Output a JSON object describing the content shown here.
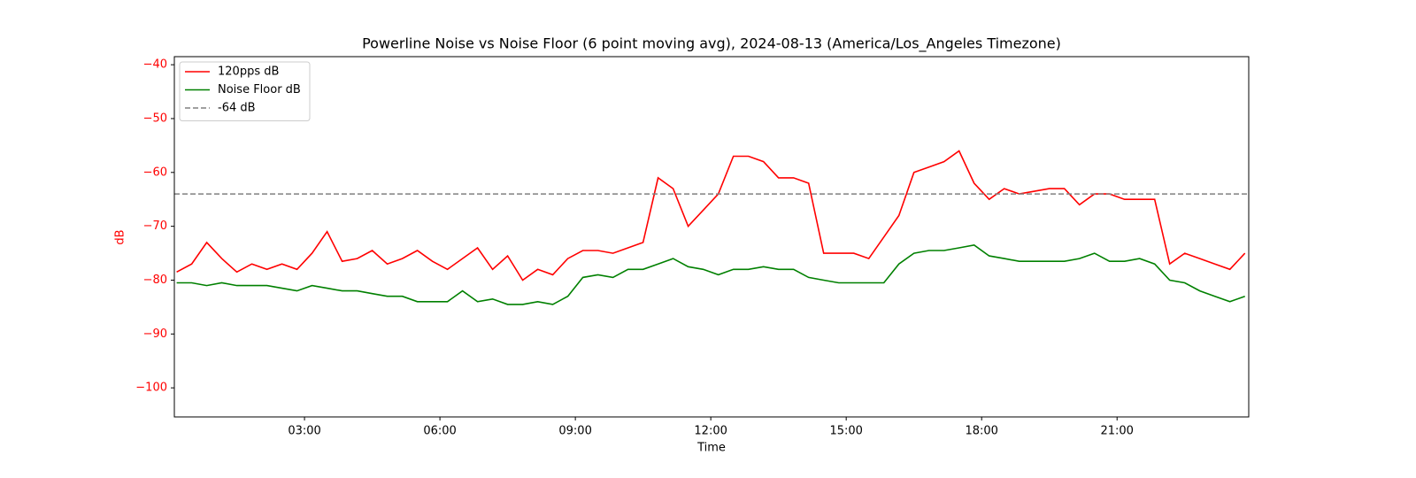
{
  "chart_data": {
    "type": "line",
    "title": "Powerline Noise vs Noise Floor (6 point moving avg), 2024-08-13 (America/Los_Angeles Timezone)",
    "xlabel": "Time",
    "ylabel": "dB",
    "ylabel_color": "#ff0000",
    "x": [
      "00:10",
      "00:30",
      "00:50",
      "01:10",
      "01:30",
      "01:50",
      "02:10",
      "02:30",
      "02:50",
      "03:10",
      "03:30",
      "03:50",
      "04:10",
      "04:30",
      "04:50",
      "05:10",
      "05:30",
      "05:50",
      "06:10",
      "06:30",
      "06:50",
      "07:10",
      "07:30",
      "07:50",
      "08:10",
      "08:30",
      "08:50",
      "09:10",
      "09:30",
      "09:50",
      "10:10",
      "10:30",
      "10:50",
      "11:10",
      "11:30",
      "11:50",
      "12:10",
      "12:30",
      "12:50",
      "13:10",
      "13:30",
      "13:50",
      "14:10",
      "14:30",
      "14:50",
      "15:10",
      "15:30",
      "15:50",
      "16:10",
      "16:30",
      "16:50",
      "17:10",
      "17:30",
      "17:50",
      "18:10",
      "18:30",
      "18:50",
      "19:10",
      "19:30",
      "19:50",
      "20:10",
      "20:30",
      "20:50",
      "21:10",
      "21:30",
      "21:50",
      "22:10",
      "22:30",
      "22:50",
      "23:10",
      "23:30",
      "23:50"
    ],
    "series": [
      {
        "name": "120pps dB",
        "color": "#ff0000",
        "values": [
          -78.5,
          -77,
          -73,
          -76,
          -78.5,
          -77,
          -78,
          -77,
          -78,
          -75,
          -71,
          -76.5,
          -76,
          -74.5,
          -77,
          -76,
          -74.5,
          -76.5,
          -78,
          -76,
          -74,
          -78,
          -75.5,
          -80,
          -78,
          -79,
          -76,
          -74.5,
          -74.5,
          -75,
          -74,
          -73,
          -61,
          -63,
          -70,
          -67,
          -64,
          -57,
          -57,
          -58,
          -61,
          -61,
          -62,
          -75,
          -75,
          -75,
          -76,
          -72,
          -68,
          -60,
          -59,
          -58,
          -56,
          -62,
          -65,
          -63,
          -64,
          -63.5,
          -63,
          -63,
          -66,
          -64,
          -64,
          -65,
          -65,
          -65,
          -77,
          -75,
          -76,
          -77,
          -78,
          -75
        ]
      },
      {
        "name": "Noise Floor dB",
        "color": "#008000",
        "values": [
          -80.5,
          -80.5,
          -81,
          -80.5,
          -81,
          -81,
          -81,
          -81.5,
          -82,
          -81,
          -81.5,
          -82,
          -82,
          -82.5,
          -83,
          -83,
          -84,
          -84,
          -84,
          -82,
          -84,
          -83.5,
          -84.5,
          -84.5,
          -84,
          -84.5,
          -83,
          -79.5,
          -79,
          -79.5,
          -78,
          -78,
          -77,
          -76,
          -77.5,
          -78,
          -79,
          -78,
          -78,
          -77.5,
          -78,
          -78,
          -79.5,
          -80,
          -80.5,
          -80.5,
          -80.5,
          -80.5,
          -77,
          -75,
          -74.5,
          -74.5,
          -74,
          -73.5,
          -75.5,
          -76,
          -76.5,
          -76.5,
          -76.5,
          -76.5,
          -76,
          -75,
          -76.5,
          -76.5,
          -76,
          -77,
          -80,
          -80.5,
          -82,
          -83,
          -84,
          -83
        ]
      }
    ],
    "hline": {
      "name": "-64 dB",
      "value": -64,
      "color": "#808080",
      "dashed": true
    },
    "xlim": [
      "00:07",
      "23:55"
    ],
    "xticks": [
      "03:00",
      "06:00",
      "09:00",
      "12:00",
      "15:00",
      "18:00",
      "21:00"
    ],
    "ylim": [
      -105.4,
      -38.5
    ],
    "yticks": [
      {
        "value": -40,
        "label": "−40"
      },
      {
        "value": -50,
        "label": "−50"
      },
      {
        "value": -60,
        "label": "−60"
      },
      {
        "value": -70,
        "label": "−70"
      },
      {
        "value": -80,
        "label": "−80"
      },
      {
        "value": -90,
        "label": "−90"
      },
      {
        "value": -100,
        "label": "−100"
      }
    ],
    "ytick_color": "#ff0000",
    "grid": false,
    "legend": "upper left"
  }
}
